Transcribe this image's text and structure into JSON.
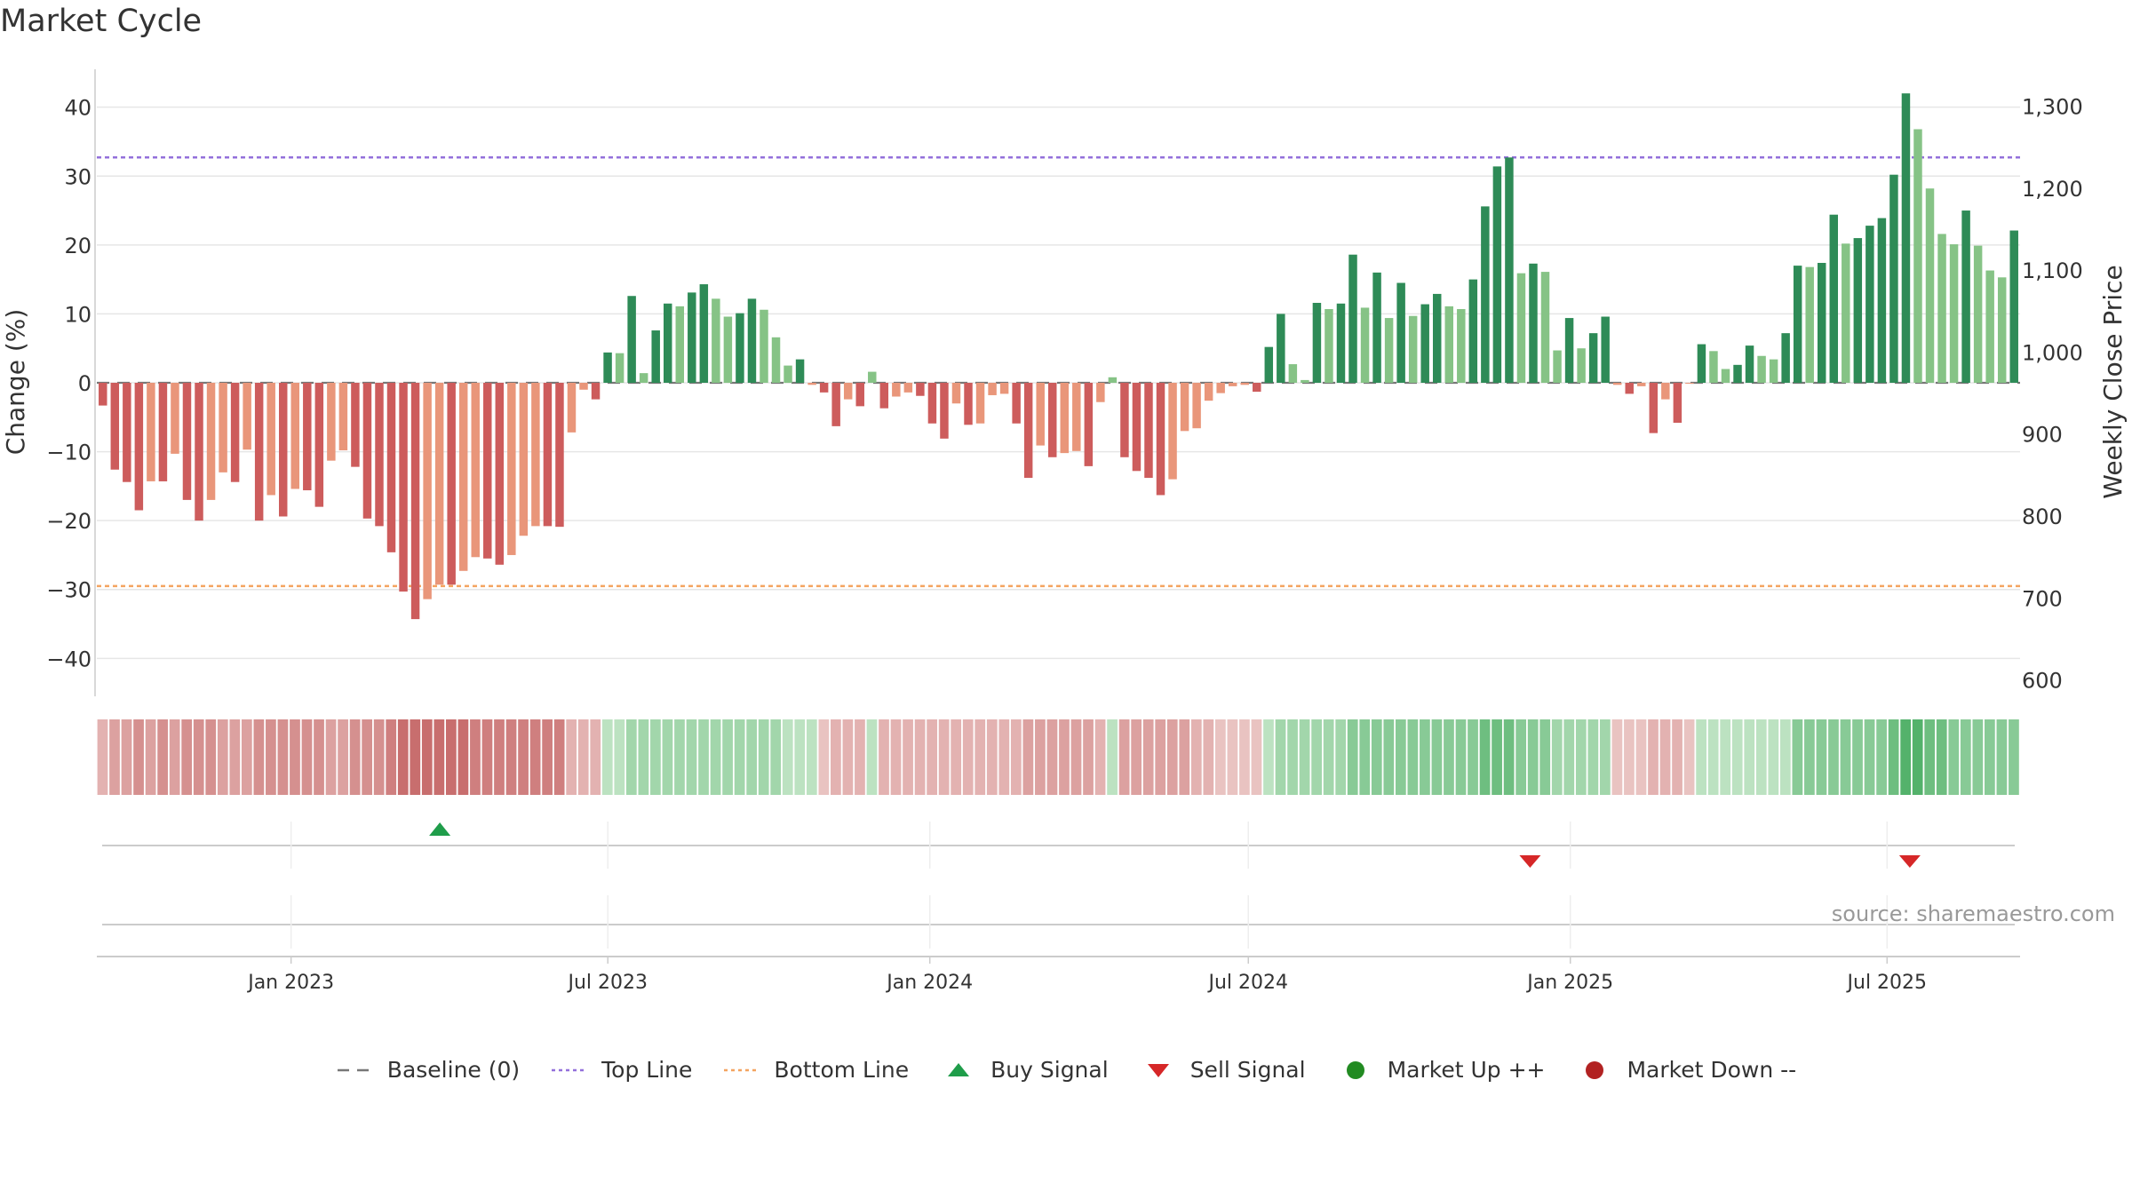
{
  "title": "Market Cycle",
  "source": "source: sharemaestro.com",
  "colors": {
    "up_dark": "#2e8b57",
    "up_light": "#86c386",
    "down_dark": "#cd5c5c",
    "down_light": "#e9967a",
    "top_line": "#9370db",
    "bottom_line": "#f4a460",
    "buy": "#1f9d4a",
    "sell": "#d62728",
    "market_up": "#228b22",
    "market_down": "#b22222",
    "baseline": "#777777"
  },
  "legend": [
    {
      "key": "baseline",
      "label": "Baseline (0)",
      "icon": "dash-line-icon"
    },
    {
      "key": "top_line",
      "label": "Top Line",
      "icon": "dotted-line-icon"
    },
    {
      "key": "bottom_line",
      "label": "Bottom Line",
      "icon": "dotted-line-icon"
    },
    {
      "key": "buy",
      "label": "Buy Signal",
      "icon": "triangle-up-icon"
    },
    {
      "key": "sell",
      "label": "Sell Signal",
      "icon": "triangle-down-icon"
    },
    {
      "key": "market_up",
      "label": "Market Up ++",
      "icon": "circle-icon"
    },
    {
      "key": "market_down",
      "label": "Market Down --",
      "icon": "circle-icon"
    }
  ],
  "chart_data": {
    "type": "bar",
    "title": "Market Cycle",
    "ylabel": "Change (%)",
    "y2label": "Weekly Close Price",
    "ylim": [
      -45.5,
      45.5
    ],
    "y2lim": [
      580,
      1345
    ],
    "yticks": [
      -40,
      -30,
      -20,
      -10,
      0,
      10,
      20,
      30,
      40
    ],
    "yticklabels": [
      "−40",
      "−30",
      "−20",
      "−10",
      "0",
      "10",
      "20",
      "30",
      "40"
    ],
    "y2ticks": [
      600,
      700,
      800,
      900,
      1000,
      1100,
      1200,
      1300
    ],
    "y2ticklabels": [
      "600",
      "700",
      "800",
      "900",
      "1,000",
      "1,100",
      "1,200",
      "1,300"
    ],
    "x_start": "2022-09-12",
    "x_end": "2025-09-15",
    "xticks": [
      "2023-01-01",
      "2023-07-01",
      "2024-01-01",
      "2024-07-01",
      "2025-01-01",
      "2025-07-01"
    ],
    "xticklabels": [
      "Jan 2023",
      "Jul 2023",
      "Jan 2024",
      "Jul 2024",
      "Jan 2025",
      "Jul 2025"
    ],
    "top_line": 32.7,
    "bottom_line": -29.5,
    "grid": true,
    "legend_position": "bottom",
    "values": [
      -3.3,
      -12.6,
      -14.4,
      -18.5,
      -14.3,
      -14.3,
      -10.3,
      -17.0,
      -20.0,
      -17.0,
      -13.0,
      -14.4,
      -9.7,
      -20.0,
      -16.3,
      -19.4,
      -15.4,
      -15.6,
      -18.0,
      -11.3,
      -9.8,
      -12.2,
      -19.7,
      -20.8,
      -24.6,
      -30.3,
      -34.3,
      -31.4,
      -29.3,
      -29.3,
      -27.3,
      -25.3,
      -25.5,
      -26.4,
      -25.0,
      -22.2,
      -20.8,
      -20.8,
      -20.9,
      -7.2,
      -1.0,
      -2.4,
      4.4,
      4.3,
      12.6,
      1.4,
      7.6,
      11.5,
      11.1,
      13.1,
      14.3,
      12.2,
      9.6,
      10.1,
      12.2,
      10.6,
      6.6,
      2.5,
      3.4,
      -0.3,
      -1.4,
      -6.3,
      -2.4,
      -3.4,
      1.6,
      -3.7,
      -2.0,
      -1.4,
      -1.9,
      -5.9,
      -8.1,
      -3.0,
      -6.1,
      -5.9,
      -1.8,
      -1.6,
      -5.9,
      -13.8,
      -9.1,
      -10.8,
      -10.2,
      -9.9,
      -12.1,
      -2.8,
      0.8,
      -10.8,
      -12.8,
      -13.8,
      -16.3,
      -14.0,
      -7.0,
      -6.6,
      -2.6,
      -1.5,
      -0.5,
      -0.3,
      -1.3,
      5.2,
      10.0,
      2.7,
      0.4,
      11.6,
      10.7,
      11.5,
      18.6,
      10.9,
      16.0,
      9.4,
      14.5,
      9.7,
      11.4,
      12.9,
      11.1,
      10.7,
      15.0,
      25.6,
      31.4,
      32.7,
      15.9,
      17.3,
      16.1,
      4.7,
      9.4,
      5.0,
      7.2,
      9.6,
      -0.3,
      -1.6,
      -0.5,
      -7.3,
      -2.4,
      -5.8,
      -0.1,
      5.6,
      4.6,
      2.0,
      2.6,
      5.4,
      3.9,
      3.4,
      7.2,
      17.0,
      16.8,
      17.4,
      24.4,
      20.2,
      21.0,
      22.8,
      23.9,
      30.2,
      42.0,
      36.8,
      28.2,
      21.6,
      20.1,
      25.0,
      19.9,
      16.3,
      15.3,
      22.1
    ],
    "price_band": [
      -10,
      -15,
      -15,
      -20,
      -15,
      -20,
      -15,
      -20,
      -20,
      -20,
      -15,
      -15,
      -15,
      -20,
      -20,
      -20,
      -20,
      -20,
      -20,
      -15,
      -15,
      -20,
      -20,
      -20,
      -25,
      -30,
      -30,
      -30,
      -30,
      -30,
      -30,
      -25,
      -25,
      -25,
      -25,
      -25,
      -25,
      -25,
      -25,
      -10,
      -10,
      -10,
      5,
      5,
      10,
      10,
      10,
      10,
      10,
      10,
      10,
      10,
      10,
      10,
      10,
      10,
      10,
      5,
      5,
      5,
      -5,
      -10,
      -10,
      -10,
      5,
      -10,
      -10,
      -10,
      -10,
      -10,
      -10,
      -10,
      -10,
      -10,
      -10,
      -10,
      -10,
      -15,
      -15,
      -15,
      -15,
      -15,
      -15,
      -10,
      5,
      -15,
      -15,
      -15,
      -15,
      -15,
      -15,
      -10,
      -10,
      -5,
      -5,
      -5,
      -5,
      5,
      10,
      10,
      10,
      10,
      10,
      10,
      15,
      15,
      15,
      15,
      15,
      15,
      15,
      15,
      15,
      15,
      15,
      20,
      20,
      20,
      15,
      15,
      15,
      10,
      10,
      10,
      10,
      10,
      -5,
      -5,
      -5,
      -10,
      -10,
      -10,
      -5,
      5,
      5,
      5,
      5,
      5,
      5,
      5,
      5,
      15,
      15,
      15,
      15,
      15,
      15,
      15,
      15,
      20,
      25,
      25,
      20,
      20,
      15,
      15,
      15,
      15,
      15,
      15
    ],
    "buy_signals": [
      "2023-03-27"
    ],
    "sell_signals": [
      "2024-12-09",
      "2025-07-14"
    ]
  }
}
